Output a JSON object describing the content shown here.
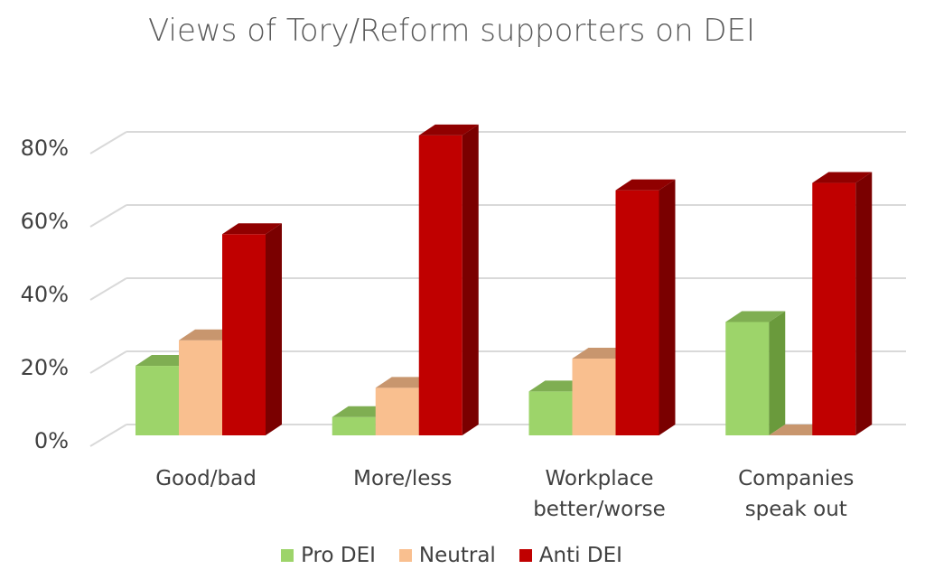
{
  "chart_data": {
    "type": "bar",
    "title": "Views of Tory/Reform supporters on DEI",
    "categories": [
      [
        "Good/bad"
      ],
      [
        "More/less"
      ],
      [
        "Workplace",
        "better/worse"
      ],
      [
        "Companies",
        "speak out"
      ]
    ],
    "series": [
      {
        "name": "Pro DEI",
        "values": [
          19,
          5,
          12,
          31
        ],
        "color": "#9dd46a",
        "side": "#6a9a3c",
        "top": "#7fae52"
      },
      {
        "name": "Neutral",
        "values": [
          26,
          13,
          21,
          0
        ],
        "color": "#f9bf8f",
        "side": "#c99a72",
        "top": "#c8966e"
      },
      {
        "name": "Anti DEI",
        "values": [
          55,
          82,
          67,
          69
        ],
        "color": "#c00000",
        "side": "#7a0000",
        "top": "#900000"
      }
    ],
    "yticks": [
      "0%",
      "20%",
      "40%",
      "60%",
      "80%"
    ],
    "ylim": [
      0,
      80
    ],
    "grid": true,
    "legend_position": "bottom"
  }
}
